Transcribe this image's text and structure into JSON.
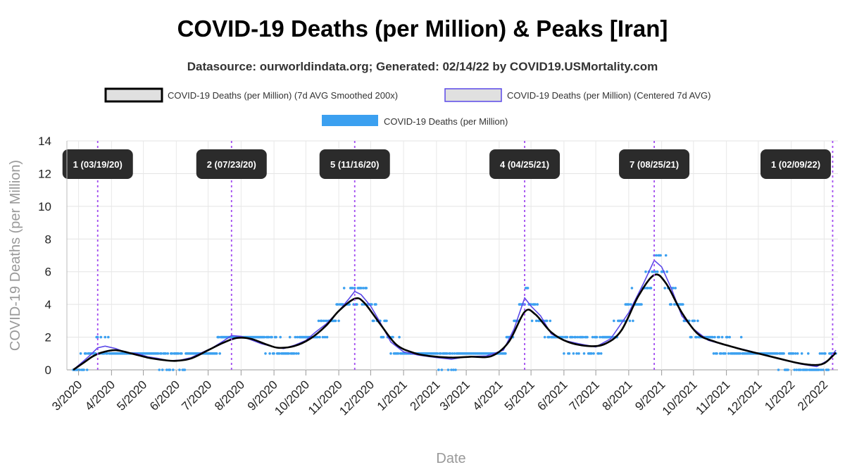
{
  "title": "COVID-19 Deaths (per Million) & Peaks [Iran]",
  "subtitle": "Datasource: ourworldindata.org; Generated: 02/14/22 by COVID19.USMortality.com",
  "chart_data": {
    "type": "line",
    "xlabel": "Date",
    "ylabel": "COVID-19 Deaths (per Million)",
    "ylim": [
      0,
      14
    ],
    "yticks": [
      0,
      2,
      4,
      6,
      8,
      10,
      12,
      14
    ],
    "xlim": [
      "2020-02-19",
      "2022-02-14"
    ],
    "x_tick_labels": [
      "3/2020",
      "4/2020",
      "5/2020",
      "6/2020",
      "7/2020",
      "8/2020",
      "9/2020",
      "10/2020",
      "11/2020",
      "12/2020",
      "1/2021",
      "2/2021",
      "3/2021",
      "4/2021",
      "5/2021",
      "6/2021",
      "7/2021",
      "8/2021",
      "9/2021",
      "10/2021",
      "11/2021",
      "12/2021",
      "1/2022",
      "2/2022"
    ],
    "x_tick_dates": [
      "2020-03-01",
      "2020-04-01",
      "2020-05-01",
      "2020-06-01",
      "2020-07-01",
      "2020-08-01",
      "2020-09-01",
      "2020-10-01",
      "2020-11-01",
      "2020-12-01",
      "2021-01-01",
      "2021-02-01",
      "2021-03-01",
      "2021-04-01",
      "2021-05-01",
      "2021-06-01",
      "2021-07-01",
      "2021-08-01",
      "2021-09-01",
      "2021-10-01",
      "2021-11-01",
      "2021-12-01",
      "2022-01-01",
      "2022-02-01"
    ],
    "grid": true,
    "legend_position": "top",
    "legend": [
      {
        "label": "COVID-19 Deaths (per Million) (7d AVG Smoothed 200x)",
        "color": "#000000",
        "fill": "#e0e0e0"
      },
      {
        "label": "COVID-19 Deaths (per Million) (Centered 7d AVG)",
        "color": "#5a48e8",
        "fill": "#e0e0e0"
      },
      {
        "label": "COVID-19 Deaths (per Million)",
        "color": "#3ba0f0",
        "fill": "#3ba0f0"
      }
    ],
    "series": [
      {
        "name": "COVID-19 Deaths (per Million) (7d AVG Smoothed 200x)",
        "color": "#000000",
        "points": [
          [
            "2020-02-25",
            0
          ],
          [
            "2020-03-05",
            0.4
          ],
          [
            "2020-03-15",
            0.85
          ],
          [
            "2020-03-25",
            1.1
          ],
          [
            "2020-04-05",
            1.2
          ],
          [
            "2020-04-20",
            1.0
          ],
          [
            "2020-05-05",
            0.75
          ],
          [
            "2020-05-20",
            0.6
          ],
          [
            "2020-06-01",
            0.55
          ],
          [
            "2020-06-15",
            0.7
          ],
          [
            "2020-07-01",
            1.2
          ],
          [
            "2020-07-15",
            1.65
          ],
          [
            "2020-07-28",
            1.95
          ],
          [
            "2020-08-10",
            1.9
          ],
          [
            "2020-08-25",
            1.55
          ],
          [
            "2020-09-05",
            1.35
          ],
          [
            "2020-09-20",
            1.45
          ],
          [
            "2020-10-05",
            1.9
          ],
          [
            "2020-10-20",
            2.7
          ],
          [
            "2020-11-01",
            3.6
          ],
          [
            "2020-11-16",
            4.35
          ],
          [
            "2020-11-25",
            4.1
          ],
          [
            "2020-12-10",
            2.8
          ],
          [
            "2020-12-25",
            1.55
          ],
          [
            "2021-01-10",
            1.05
          ],
          [
            "2021-01-25",
            0.85
          ],
          [
            "2021-02-15",
            0.75
          ],
          [
            "2021-03-05",
            0.8
          ],
          [
            "2021-03-25",
            0.85
          ],
          [
            "2021-04-10",
            1.7
          ],
          [
            "2021-04-25",
            3.55
          ],
          [
            "2021-05-05",
            3.4
          ],
          [
            "2021-05-20",
            2.3
          ],
          [
            "2021-06-05",
            1.7
          ],
          [
            "2021-06-25",
            1.45
          ],
          [
            "2021-07-10",
            1.6
          ],
          [
            "2021-07-25",
            2.4
          ],
          [
            "2021-08-10",
            4.5
          ],
          [
            "2021-08-25",
            5.8
          ],
          [
            "2021-09-05",
            5.3
          ],
          [
            "2021-09-20",
            3.5
          ],
          [
            "2021-10-05",
            2.2
          ],
          [
            "2021-10-20",
            1.75
          ],
          [
            "2021-11-10",
            1.35
          ],
          [
            "2021-12-01",
            1.0
          ],
          [
            "2021-12-20",
            0.7
          ],
          [
            "2022-01-05",
            0.45
          ],
          [
            "2022-01-20",
            0.3
          ],
          [
            "2022-02-01",
            0.4
          ],
          [
            "2022-02-12",
            1.05
          ]
        ]
      },
      {
        "name": "COVID-19 Deaths (per Million) (Centered 7d AVG)",
        "color": "#5a48e8",
        "points": [
          [
            "2020-02-25",
            0
          ],
          [
            "2020-03-05",
            0.5
          ],
          [
            "2020-03-12",
            0.9
          ],
          [
            "2020-03-19",
            1.35
          ],
          [
            "2020-03-26",
            1.45
          ],
          [
            "2020-04-05",
            1.3
          ],
          [
            "2020-04-15",
            1.05
          ],
          [
            "2020-04-25",
            1.0
          ],
          [
            "2020-05-05",
            0.8
          ],
          [
            "2020-05-15",
            0.7
          ],
          [
            "2020-05-25",
            0.55
          ],
          [
            "2020-06-05",
            0.6
          ],
          [
            "2020-06-15",
            0.75
          ],
          [
            "2020-06-25",
            1.05
          ],
          [
            "2020-07-05",
            1.35
          ],
          [
            "2020-07-15",
            1.75
          ],
          [
            "2020-07-23",
            2.1
          ],
          [
            "2020-08-01",
            2.05
          ],
          [
            "2020-08-10",
            1.85
          ],
          [
            "2020-08-20",
            1.6
          ],
          [
            "2020-09-01",
            1.4
          ],
          [
            "2020-09-10",
            1.3
          ],
          [
            "2020-09-20",
            1.5
          ],
          [
            "2020-10-01",
            1.8
          ],
          [
            "2020-10-10",
            2.3
          ],
          [
            "2020-10-20",
            2.8
          ],
          [
            "2020-11-01",
            3.6
          ],
          [
            "2020-11-10",
            4.3
          ],
          [
            "2020-11-16",
            4.8
          ],
          [
            "2020-11-22",
            4.6
          ],
          [
            "2020-12-01",
            3.9
          ],
          [
            "2020-12-10",
            2.9
          ],
          [
            "2020-12-20",
            1.7
          ],
          [
            "2021-01-01",
            1.1
          ],
          [
            "2021-01-15",
            0.9
          ],
          [
            "2021-02-01",
            0.75
          ],
          [
            "2021-02-15",
            0.65
          ],
          [
            "2021-03-01",
            0.8
          ],
          [
            "2021-03-20",
            0.85
          ],
          [
            "2021-04-05",
            1.2
          ],
          [
            "2021-04-15",
            2.5
          ],
          [
            "2021-04-25",
            4.4
          ],
          [
            "2021-05-01",
            3.9
          ],
          [
            "2021-05-10",
            3.3
          ],
          [
            "2021-05-20",
            2.2
          ],
          [
            "2021-06-01",
            1.8
          ],
          [
            "2021-06-15",
            1.6
          ],
          [
            "2021-07-01",
            1.4
          ],
          [
            "2021-07-15",
            1.9
          ],
          [
            "2021-08-01",
            3.5
          ],
          [
            "2021-08-15",
            5.3
          ],
          [
            "2021-08-25",
            6.7
          ],
          [
            "2021-09-01",
            6.3
          ],
          [
            "2021-09-10",
            5.0
          ],
          [
            "2021-09-20",
            3.3
          ],
          [
            "2021-10-01",
            2.5
          ],
          [
            "2021-10-15",
            1.8
          ],
          [
            "2021-11-01",
            1.5
          ],
          [
            "2021-11-20",
            1.2
          ],
          [
            "2021-12-10",
            0.85
          ],
          [
            "2021-12-25",
            0.6
          ],
          [
            "2022-01-10",
            0.35
          ],
          [
            "2022-01-25",
            0.2
          ],
          [
            "2022-02-05",
            0.6
          ],
          [
            "2022-02-12",
            1.2
          ]
        ]
      },
      {
        "name": "COVID-19 Deaths (per Million)",
        "color": "#3ba0f0",
        "render": "points"
      }
    ],
    "peaks": [
      {
        "label": "1 (03/19/20)",
        "date": "2020-03-19"
      },
      {
        "label": "2 (07/23/20)",
        "date": "2020-07-23"
      },
      {
        "label": "5 (11/16/20)",
        "date": "2020-11-16"
      },
      {
        "label": "4 (04/25/21)",
        "date": "2021-04-25"
      },
      {
        "label": "7 (08/25/21)",
        "date": "2021-08-25"
      },
      {
        "label": "1 (02/09/22)",
        "date": "2022-02-09"
      }
    ]
  }
}
